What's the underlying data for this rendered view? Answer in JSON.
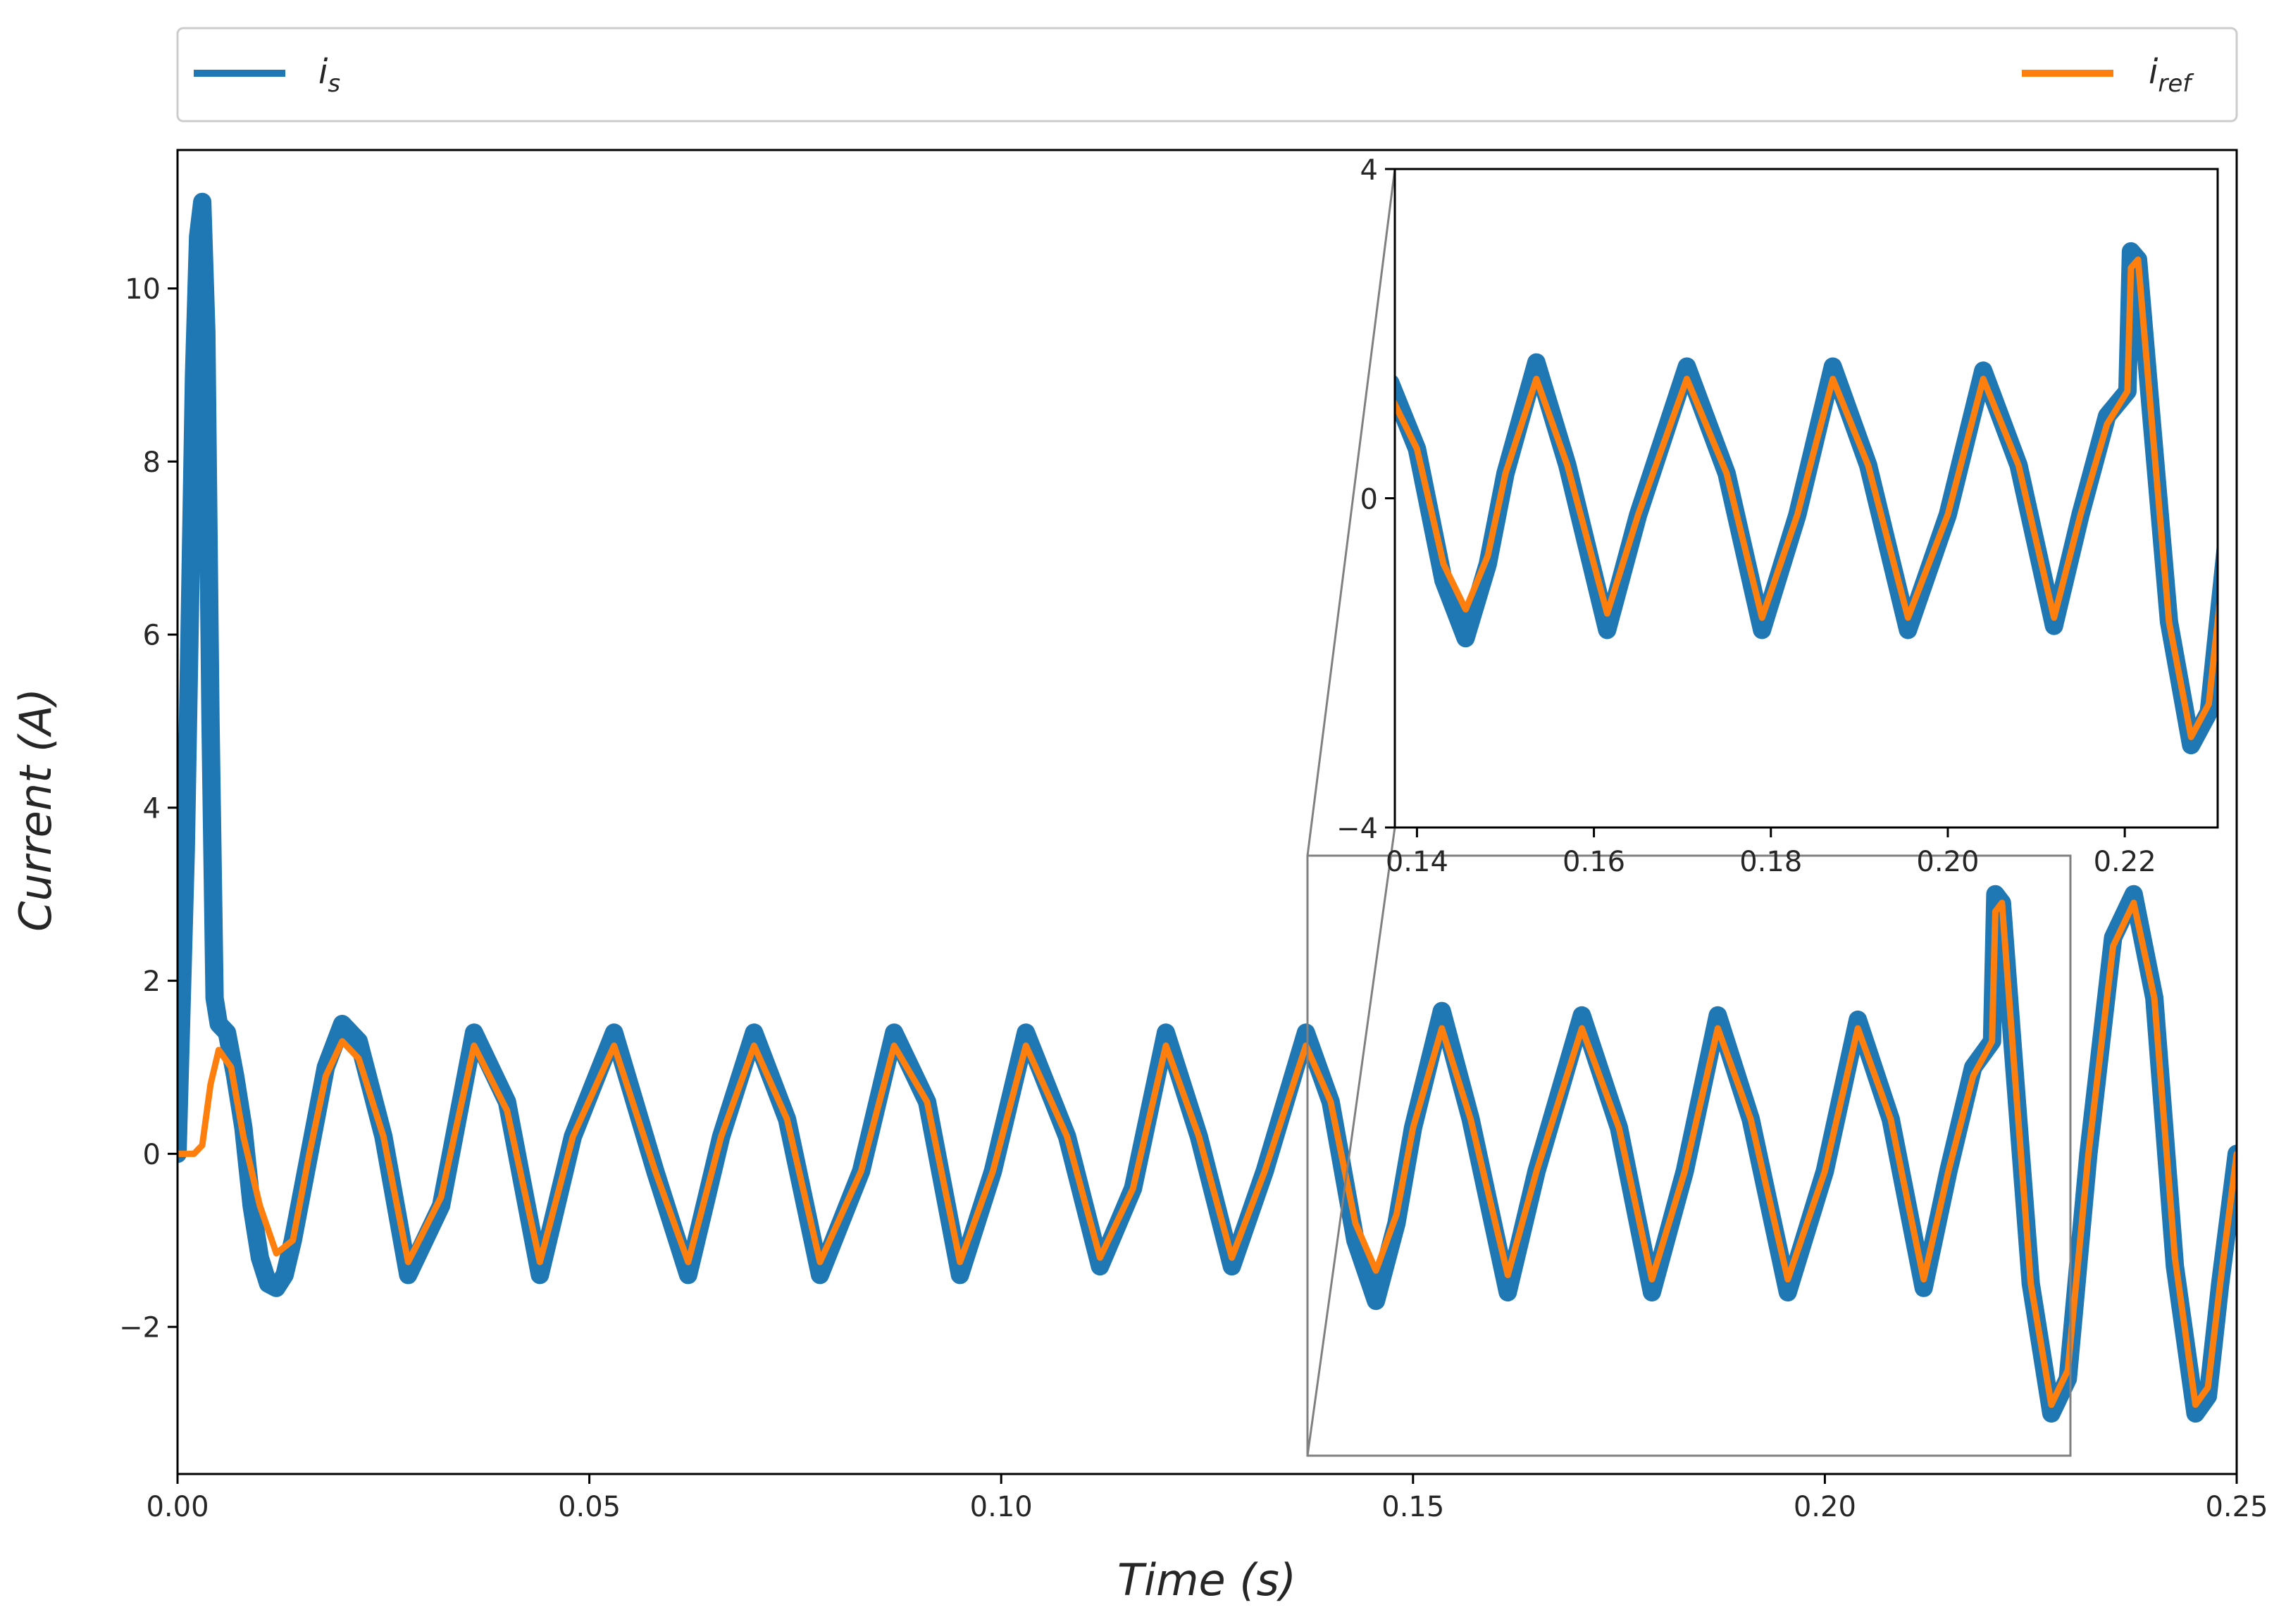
{
  "chart_data": [
    {
      "type": "line",
      "xlabel": "Time (s)",
      "ylabel": "Current (A)",
      "xlim": [
        0.0,
        0.25
      ],
      "ylim": [
        -3.7,
        11.6
      ],
      "xticks": [
        0.0,
        0.05,
        0.1,
        0.15,
        0.2,
        0.25
      ],
      "xtick_labels": [
        "0.00",
        "0.05",
        "0.10",
        "0.15",
        "0.20",
        "0.25"
      ],
      "yticks": [
        -2,
        0,
        2,
        4,
        6,
        8,
        10
      ],
      "ytick_labels": [
        "−2",
        "0",
        "2",
        "4",
        "6",
        "8",
        "10"
      ],
      "grid": false,
      "legend_position": "top, outside plot area",
      "legend": [
        {
          "symbol": "i",
          "subscript": "s",
          "color": "#1f77b4"
        },
        {
          "symbol": "i",
          "subscript": "ref",
          "color": "#ff7f0e"
        }
      ],
      "series": [
        {
          "name": "i_s",
          "color": "#1f77b4",
          "x": [
            0.0,
            0.001,
            0.002,
            0.0025,
            0.003,
            0.0035,
            0.004,
            0.0045,
            0.005,
            0.006,
            0.007,
            0.008,
            0.009,
            0.01,
            0.011,
            0.012,
            0.013,
            0.014,
            0.016,
            0.018,
            0.02,
            0.022,
            0.025,
            0.028,
            0.032,
            0.036,
            0.04,
            0.044,
            0.048,
            0.053,
            0.058,
            0.062,
            0.066,
            0.07,
            0.074,
            0.078,
            0.083,
            0.087,
            0.091,
            0.095,
            0.099,
            0.103,
            0.108,
            0.112,
            0.116,
            0.12,
            0.124,
            0.128,
            0.132,
            0.137,
            0.14,
            0.143,
            0.1455,
            0.148,
            0.15,
            0.1535,
            0.157,
            0.1615,
            0.165,
            0.1705,
            0.175,
            0.179,
            0.183,
            0.187,
            0.191,
            0.1955,
            0.2,
            0.204,
            0.208,
            0.212,
            0.215,
            0.218,
            0.2203,
            0.2207,
            0.2215,
            0.223,
            0.225,
            0.2275,
            0.2295,
            0.232,
            0.235,
            0.2375,
            0.24,
            0.2425,
            0.245,
            0.2465,
            0.248,
            0.25
          ],
          "y": [
            0.0,
            3.5,
            9.0,
            10.6,
            11.0,
            9.5,
            5.0,
            1.8,
            1.5,
            1.4,
            0.9,
            0.3,
            -0.6,
            -1.2,
            -1.5,
            -1.55,
            -1.4,
            -1.0,
            0.0,
            1.0,
            1.5,
            1.3,
            0.2,
            -1.4,
            -0.6,
            1.4,
            0.6,
            -1.4,
            0.2,
            1.4,
            -0.2,
            -1.4,
            0.2,
            1.4,
            0.4,
            -1.4,
            -0.2,
            1.4,
            0.6,
            -1.4,
            -0.2,
            1.4,
            0.2,
            -1.3,
            -0.4,
            1.4,
            0.2,
            -1.3,
            -0.2,
            1.4,
            0.6,
            -1.0,
            -1.7,
            -0.8,
            0.3,
            1.65,
            0.4,
            -1.6,
            -0.2,
            1.6,
            0.3,
            -1.6,
            -0.2,
            1.6,
            0.4,
            -1.6,
            -0.2,
            1.55,
            0.4,
            -1.55,
            -0.2,
            1.0,
            1.3,
            3.0,
            2.9,
            1.0,
            -1.5,
            -3.0,
            -2.6,
            0.0,
            2.5,
            3.0,
            1.8,
            -1.3,
            -3.0,
            -2.8,
            -1.5,
            0.0
          ]
        },
        {
          "name": "i_ref",
          "color": "#ff7f0e",
          "x": [
            0.0,
            0.002,
            0.003,
            0.004,
            0.005,
            0.0065,
            0.008,
            0.01,
            0.012,
            0.014,
            0.016,
            0.018,
            0.02,
            0.022,
            0.025,
            0.028,
            0.032,
            0.036,
            0.04,
            0.044,
            0.048,
            0.053,
            0.058,
            0.062,
            0.066,
            0.07,
            0.074,
            0.078,
            0.083,
            0.087,
            0.091,
            0.095,
            0.099,
            0.103,
            0.108,
            0.112,
            0.116,
            0.12,
            0.124,
            0.128,
            0.132,
            0.137,
            0.14,
            0.143,
            0.1455,
            0.148,
            0.15,
            0.1535,
            0.157,
            0.1615,
            0.165,
            0.1705,
            0.175,
            0.179,
            0.183,
            0.187,
            0.191,
            0.1955,
            0.2,
            0.204,
            0.208,
            0.212,
            0.215,
            0.218,
            0.2203,
            0.2207,
            0.2215,
            0.223,
            0.225,
            0.2275,
            0.2295,
            0.232,
            0.235,
            0.2375,
            0.24,
            0.2425,
            0.245,
            0.2465,
            0.248,
            0.25
          ],
          "y": [
            0.0,
            0.0,
            0.1,
            0.8,
            1.2,
            1.0,
            0.2,
            -0.6,
            -1.15,
            -1.0,
            0.0,
            0.9,
            1.3,
            1.1,
            0.2,
            -1.25,
            -0.5,
            1.25,
            0.5,
            -1.25,
            0.2,
            1.25,
            -0.2,
            -1.25,
            0.2,
            1.25,
            0.4,
            -1.25,
            -0.2,
            1.25,
            0.6,
            -1.25,
            -0.2,
            1.25,
            0.2,
            -1.2,
            -0.4,
            1.25,
            0.2,
            -1.2,
            -0.2,
            1.25,
            0.6,
            -0.8,
            -1.35,
            -0.7,
            0.3,
            1.45,
            0.4,
            -1.4,
            -0.2,
            1.45,
            0.3,
            -1.45,
            -0.2,
            1.45,
            0.4,
            -1.45,
            -0.2,
            1.45,
            0.4,
            -1.45,
            -0.2,
            0.9,
            1.3,
            2.8,
            2.9,
            1.0,
            -1.5,
            -2.9,
            -2.5,
            0.0,
            2.4,
            2.9,
            1.8,
            -1.2,
            -2.9,
            -2.7,
            -1.5,
            0.0
          ]
        }
      ]
    },
    {
      "type": "line",
      "role": "zoomed inset",
      "xlim": [
        0.1375,
        0.2305
      ],
      "ylim": [
        -4,
        4
      ],
      "xticks": [
        0.14,
        0.16,
        0.18,
        0.2,
        0.22
      ],
      "xtick_labels": [
        "0.14",
        "0.16",
        "0.18",
        "0.20",
        "0.22"
      ],
      "yticks": [
        -4,
        0,
        4
      ],
      "ytick_labels": [
        "−4",
        "0",
        "4"
      ],
      "series_ref": "same data as main chart i_s and i_ref"
    }
  ]
}
